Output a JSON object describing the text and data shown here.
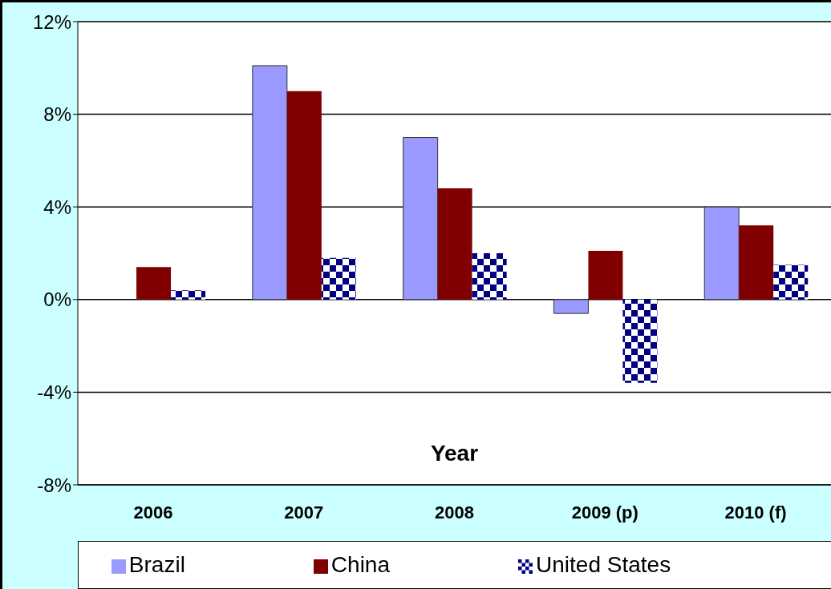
{
  "chart_data": {
    "type": "bar",
    "xlabel": "Year",
    "categories": [
      "2006",
      "2007",
      "2008",
      "2009 (p)",
      "2010 (f)"
    ],
    "series": [
      {
        "name": "Brazil",
        "color": "#9999ff",
        "values": [
          null,
          10.1,
          7.0,
          -0.6,
          4.0
        ]
      },
      {
        "name": "China",
        "color": "#800000",
        "values": [
          1.4,
          9.0,
          4.8,
          2.1,
          3.2
        ]
      },
      {
        "name": "United States",
        "color": "#000080",
        "values": [
          0.4,
          1.8,
          2.0,
          -3.6,
          1.5
        ]
      }
    ],
    "ylim": [
      -8,
      12
    ],
    "yticks": [
      {
        "value": -8,
        "label": "-8%"
      },
      {
        "value": -4,
        "label": "-4%"
      },
      {
        "value": 0,
        "label": "0%"
      },
      {
        "value": 4,
        "label": "4%"
      },
      {
        "value": 8,
        "label": "8%"
      },
      {
        "value": 12,
        "label": "12%"
      }
    ],
    "grid": "y",
    "legend": "bottom"
  }
}
